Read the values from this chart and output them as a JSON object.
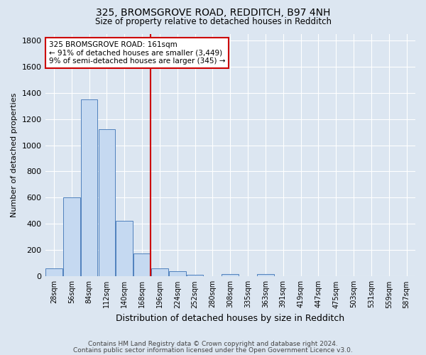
{
  "title1": "325, BROMSGROVE ROAD, REDDITCH, B97 4NH",
  "title2": "Size of property relative to detached houses in Redditch",
  "xlabel": "Distribution of detached houses by size in Redditch",
  "ylabel": "Number of detached properties",
  "footer1": "Contains HM Land Registry data © Crown copyright and database right 2024.",
  "footer2": "Contains public sector information licensed under the Open Government Licence v3.0.",
  "bar_labels": [
    "28sqm",
    "56sqm",
    "84sqm",
    "112sqm",
    "140sqm",
    "168sqm",
    "196sqm",
    "224sqm",
    "252sqm",
    "280sqm",
    "308sqm",
    "335sqm",
    "363sqm",
    "391sqm",
    "419sqm",
    "447sqm",
    "475sqm",
    "503sqm",
    "531sqm",
    "559sqm",
    "587sqm"
  ],
  "bar_values": [
    60,
    600,
    1350,
    1120,
    425,
    175,
    60,
    40,
    15,
    0,
    20,
    0,
    20,
    0,
    0,
    0,
    0,
    0,
    0,
    0,
    0
  ],
  "bar_color": "#c5d9f1",
  "bar_edge_color": "#4f81bd",
  "bg_color": "#dce6f1",
  "grid_color": "#ffffff",
  "vline_color": "#cc0000",
  "vline_x_index": 5,
  "annotation_text_line1": "325 BROMSGROVE ROAD: 161sqm",
  "annotation_text_line2": "← 91% of detached houses are smaller (3,449)",
  "annotation_text_line3": "9% of semi-detached houses are larger (345) →",
  "annotation_box_facecolor": "#ffffff",
  "annotation_box_edgecolor": "#cc0000",
  "ylim_max": 1850,
  "yticks": [
    0,
    200,
    400,
    600,
    800,
    1000,
    1200,
    1400,
    1600,
    1800
  ]
}
